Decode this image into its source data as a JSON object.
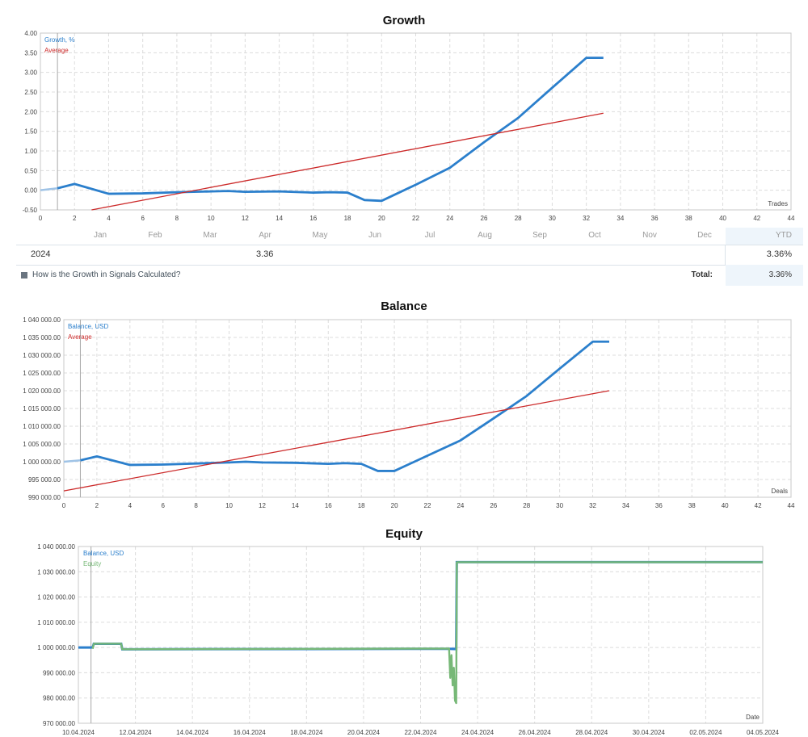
{
  "growth": {
    "title": "Growth",
    "legend": {
      "series": "Growth, %",
      "average": "Average"
    },
    "x_unit": "Trades",
    "y_ticks": [
      "4.00",
      "3.50",
      "3.00",
      "2.50",
      "2.00",
      "1.50",
      "1.00",
      "0.50",
      "0.00",
      "-0.50"
    ],
    "x_ticks": [
      "0",
      "2",
      "4",
      "6",
      "8",
      "10",
      "12",
      "14",
      "16",
      "18",
      "20",
      "22",
      "24",
      "26",
      "28",
      "30",
      "32",
      "34",
      "36",
      "38",
      "40",
      "42",
      "44"
    ],
    "months": [
      "Jan",
      "Feb",
      "Mar",
      "Apr",
      "May",
      "Jun",
      "Jul",
      "Aug",
      "Sep",
      "Oct",
      "Nov",
      "Dec"
    ],
    "ytd_label": "YTD",
    "year": "2024",
    "april_value": "3.36",
    "ytd_value": "3.36%",
    "calc_link": "How is the Growth in Signals Calculated?",
    "total_label": "Total:",
    "total_value": "3.36%"
  },
  "balance": {
    "title": "Balance",
    "legend": {
      "series": "Balance, USD",
      "average": "Average"
    },
    "x_unit": "Deals",
    "y_ticks": [
      "1 040 000.00",
      "1 035 000.00",
      "1 030 000.00",
      "1 025 000.00",
      "1 020 000.00",
      "1 015 000.00",
      "1 010 000.00",
      "1 005 000.00",
      "1 000 000.00",
      "995 000.00",
      "990 000.00"
    ],
    "x_ticks": [
      "0",
      "2",
      "4",
      "6",
      "8",
      "10",
      "12",
      "14",
      "16",
      "18",
      "20",
      "22",
      "24",
      "26",
      "28",
      "30",
      "32",
      "34",
      "36",
      "38",
      "40",
      "42",
      "44"
    ]
  },
  "equity": {
    "title": "Equity",
    "legend": {
      "balance": "Balance, USD",
      "equity": "Equity"
    },
    "x_unit": "Date",
    "y_ticks": [
      "1 040 000.00",
      "1 030 000.00",
      "1 020 000.00",
      "1 010 000.00",
      "1 000 000.00",
      "990 000.00",
      "980 000.00",
      "970 000.00"
    ],
    "x_ticks": [
      "10.04.2024",
      "12.04.2024",
      "14.04.2024",
      "16.04.2024",
      "18.04.2024",
      "20.04.2024",
      "22.04.2024",
      "24.04.2024",
      "26.04.2024",
      "28.04.2024",
      "30.04.2024",
      "02.05.2024",
      "04.05.2024"
    ]
  },
  "colors": {
    "series": "#2b7fcc",
    "average": "#cc2a2a",
    "equity": "#77b877",
    "grid": "#dcdcdc",
    "axis": "#c8c8c8"
  },
  "chart_data": [
    {
      "type": "line",
      "title": "Growth",
      "xlabel": "Trades",
      "xlim": [
        0,
        44
      ],
      "ylim": [
        -0.5,
        4.0
      ],
      "series": [
        {
          "name": "Growth, %",
          "x": [
            0,
            1,
            2,
            4,
            6,
            8,
            10,
            11,
            12,
            14,
            16,
            17,
            18,
            19,
            20,
            22,
            24,
            26,
            28,
            30,
            32,
            33
          ],
          "y": [
            0,
            0.05,
            0.16,
            -0.09,
            -0.08,
            -0.05,
            -0.03,
            -0.02,
            -0.04,
            -0.03,
            -0.06,
            -0.05,
            -0.06,
            -0.25,
            -0.27,
            0.14,
            0.57,
            1.22,
            1.84,
            2.61,
            3.37,
            3.37
          ]
        },
        {
          "name": "Average",
          "x": [
            3,
            33
          ],
          "y": [
            -0.5,
            1.96
          ]
        }
      ],
      "months": [
        "Jan",
        "Feb",
        "Mar",
        "Apr",
        "May",
        "Jun",
        "Jul",
        "Aug",
        "Sep",
        "Oct",
        "Nov",
        "Dec"
      ],
      "table": {
        "year": "2024",
        "Apr": 3.36,
        "YTD": 3.36,
        "Total": 3.36
      }
    },
    {
      "type": "line",
      "title": "Balance",
      "xlabel": "Deals",
      "xlim": [
        0,
        44
      ],
      "ylim": [
        990000,
        1040000
      ],
      "series": [
        {
          "name": "Balance, USD",
          "x": [
            0,
            1,
            2,
            4,
            6,
            8,
            10,
            11,
            12,
            14,
            16,
            17,
            18,
            19,
            20,
            22,
            24,
            26,
            28,
            30,
            32,
            33
          ],
          "y": [
            1000000,
            1000400,
            1001500,
            999100,
            999200,
            999500,
            999800,
            1000000,
            999800,
            999700,
            999400,
            999600,
            999400,
            997400,
            997400,
            1001700,
            1006000,
            1012200,
            1018500,
            1026200,
            1033800,
            1033800
          ]
        },
        {
          "name": "Average",
          "x": [
            0,
            33
          ],
          "y": [
            991800,
            1020000
          ]
        }
      ]
    },
    {
      "type": "line",
      "title": "Equity",
      "xlabel": "Date",
      "xlim": [
        "10.04.2024",
        "04.05.2024"
      ],
      "ylim": [
        970000,
        1040000
      ],
      "series": [
        {
          "name": "Balance, USD",
          "x": [
            "10.04.2024 00:00",
            "10.04.2024 12:00",
            "10.04.2024 13:00",
            "11.04.2024 12:00",
            "11.04.2024 13:00",
            "23.04.2024 00:00",
            "23.04.2024 06:00",
            "23.04.2024 06:30",
            "04.05.2024 00:00"
          ],
          "y": [
            1000000,
            1000000,
            1001500,
            1001500,
            999300,
            999500,
            999400,
            1033800,
            1033800
          ]
        },
        {
          "name": "Equity",
          "x": [
            "10.04.2024 12:00",
            "10.04.2024 13:00",
            "11.04.2024 12:00",
            "11.04.2024 13:00",
            "23.04.2024 00:00",
            "23.04.2024 01:00",
            "23.04.2024 02:00",
            "23.04.2024 03:00",
            "23.04.2024 04:00",
            "23.04.2024 05:00",
            "23.04.2024 06:00",
            "23.04.2024 06:30",
            "04.05.2024 00:00"
          ],
          "y": [
            999500,
            1001500,
            1001500,
            999300,
            999600,
            988000,
            997000,
            985000,
            992000,
            979000,
            978000,
            1033800,
            1033800
          ]
        }
      ]
    }
  ]
}
